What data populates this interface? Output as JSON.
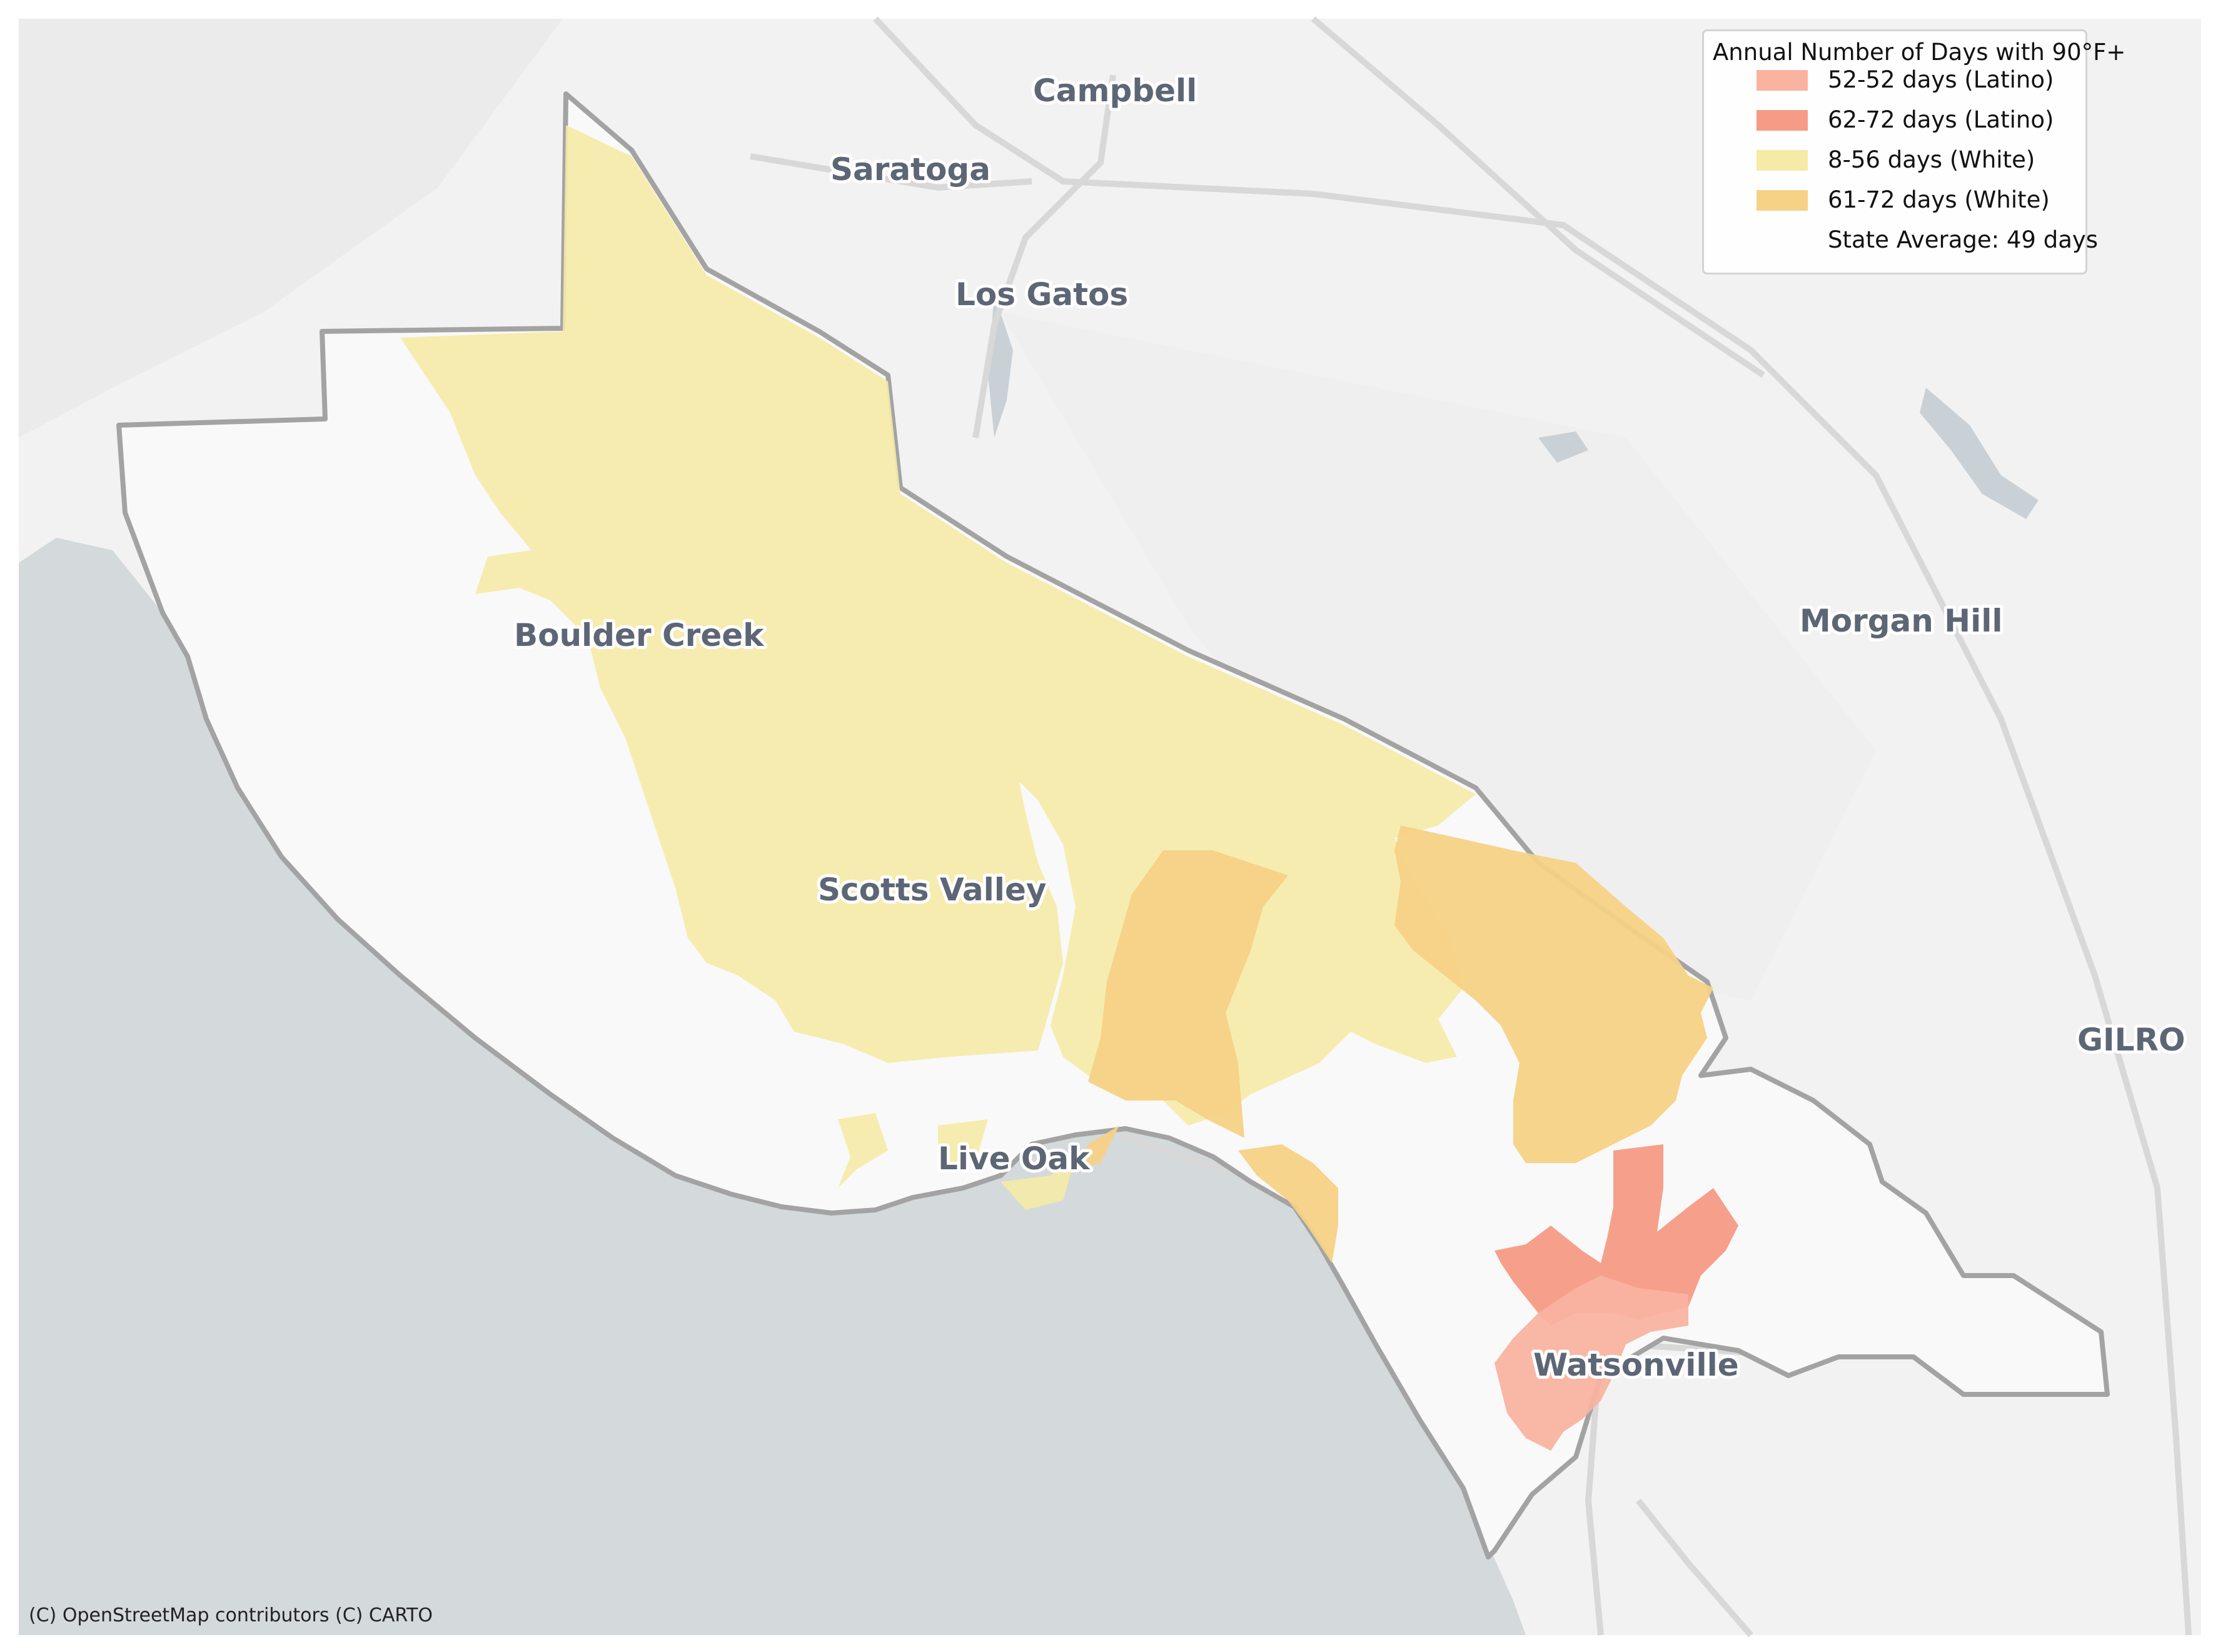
{
  "map": {
    "places": [
      {
        "id": "campbell",
        "name": "Campbell"
      },
      {
        "id": "saratoga",
        "name": "Saratoga"
      },
      {
        "id": "los-gatos",
        "name": "Los Gatos"
      },
      {
        "id": "morgan-hill",
        "name": "Morgan Hill"
      },
      {
        "id": "gilroy",
        "name": "GILRO"
      },
      {
        "id": "boulder-creek",
        "name": "Boulder Creek"
      },
      {
        "id": "scotts-valley",
        "name": "Scotts Valley"
      },
      {
        "id": "live-oak",
        "name": "Live Oak"
      },
      {
        "id": "watsonville",
        "name": "Watsonville"
      }
    ],
    "attribution": "(C) OpenStreetMap contributors (C) CARTO"
  },
  "legend": {
    "title": "Annual Number of Days with 90°F+",
    "entries": [
      {
        "label": "52-52 days (Latino)",
        "color": "#f9b3a0"
      },
      {
        "label": "62-72 days (Latino)",
        "color": "#f59b86"
      },
      {
        "label": "8-56 days (White)",
        "color": "#f5eaa6"
      },
      {
        "label": "61-72 days (White)",
        "color": "#f6d286"
      },
      {
        "label": "State Average: 49 days",
        "color": ""
      }
    ]
  },
  "colors": {
    "ocean": "#d4d9dc",
    "land": "#f2f2f2",
    "county_fill": "#f9f9f9",
    "county_border": "#a3a3a3",
    "road": "#d8d8d8",
    "water": "#c9d1d6"
  }
}
